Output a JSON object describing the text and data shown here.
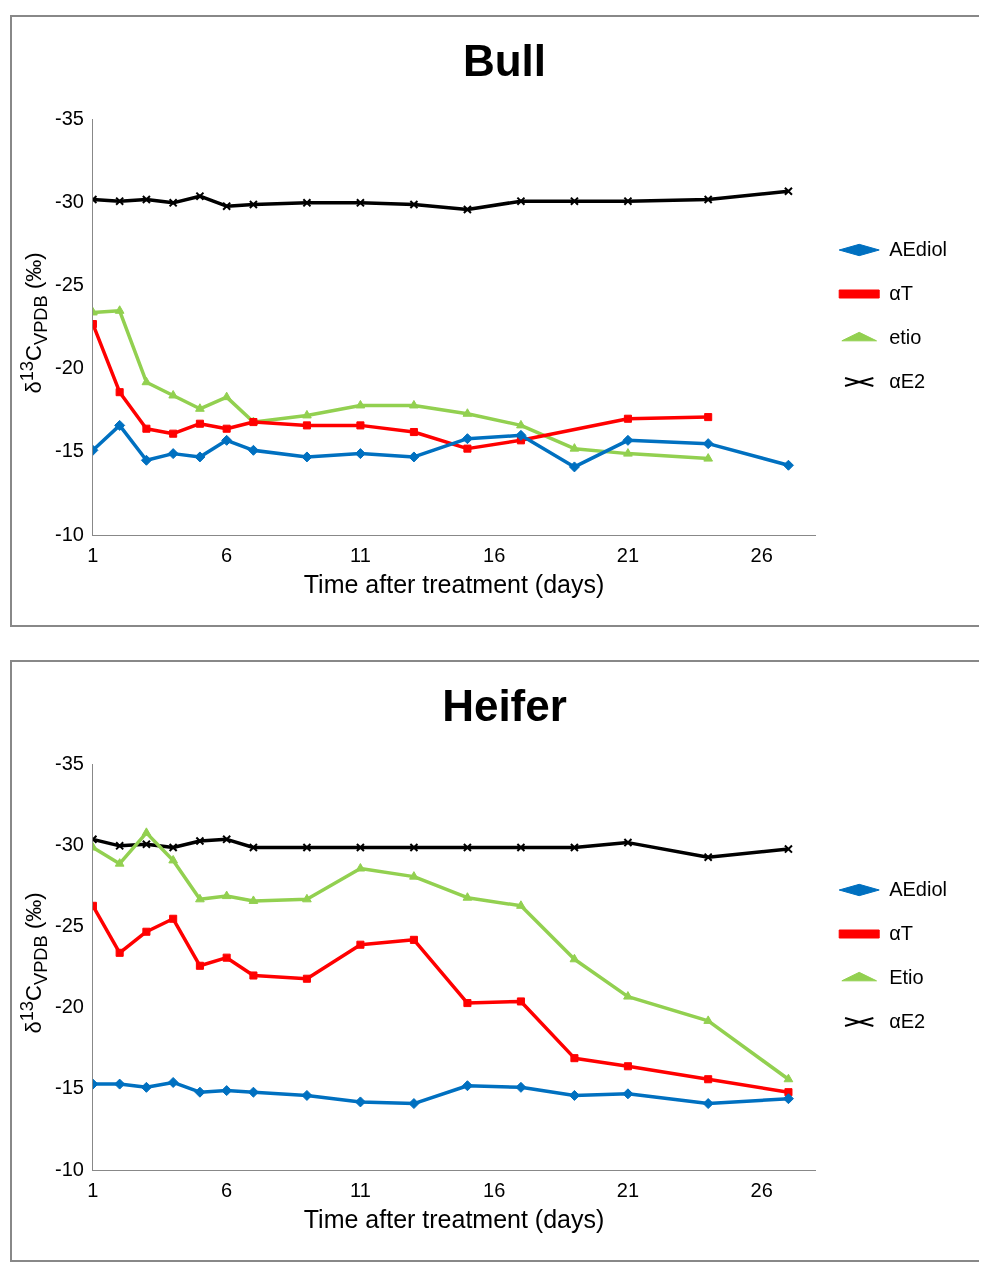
{
  "chart_data": [
    {
      "type": "line",
      "title": "Bull",
      "xlabel": "Time after treatment (days)",
      "ylabel": "δ$^{13}$C$_{VPDB}$ (‰)",
      "xlim": [
        1,
        28
      ],
      "xticks": [
        1,
        6,
        11,
        16,
        21,
        26
      ],
      "ylim": [
        -10,
        -35
      ],
      "yticks": [
        -35,
        -30,
        -25,
        -20,
        -15,
        -10
      ],
      "grid": false,
      "legend": "right",
      "series": [
        {
          "name": "AEdiol",
          "color": "#0070c0",
          "marker": "diamond",
          "x": [
            1,
            2,
            3,
            4,
            5,
            6,
            7,
            9,
            11,
            13,
            15,
            17,
            19,
            21,
            24,
            27
          ],
          "values": [
            -15.1,
            -16.6,
            -14.5,
            -14.9,
            -14.7,
            -15.7,
            -15.1,
            -14.7,
            -14.9,
            -14.7,
            -15.8,
            -16.0,
            -14.1,
            -15.7,
            -15.5,
            -14.2
          ]
        },
        {
          "name": "αT",
          "color": "#ff0000",
          "marker": "square",
          "x": [
            1,
            2,
            3,
            4,
            5,
            6,
            7,
            9,
            11,
            13,
            15,
            17,
            21,
            24
          ],
          "values": [
            -22.7,
            -18.6,
            -16.4,
            -16.1,
            -16.7,
            -16.4,
            -16.8,
            -16.6,
            -16.6,
            -16.2,
            -15.2,
            -15.7,
            -17.0,
            -17.1
          ]
        },
        {
          "name": "etio",
          "color": "#92d050",
          "marker": "triangle",
          "x": [
            1,
            2,
            3,
            4,
            5,
            6,
            7,
            9,
            11,
            13,
            15,
            17,
            19,
            21,
            24
          ],
          "values": [
            -23.4,
            -23.5,
            -19.2,
            -18.4,
            -17.6,
            -18.3,
            -16.8,
            -17.2,
            -17.8,
            -17.8,
            -17.3,
            -16.6,
            -15.2,
            -14.9,
            -14.6
          ]
        },
        {
          "name": "αE2",
          "color": "#000000",
          "marker": "cross",
          "x": [
            1,
            2,
            3,
            4,
            5,
            6,
            7,
            9,
            11,
            13,
            15,
            17,
            19,
            21,
            24,
            27
          ],
          "values": [
            -30.2,
            -30.1,
            -30.2,
            -30.0,
            -30.4,
            -29.8,
            -29.9,
            -30.0,
            -30.0,
            -29.9,
            -29.6,
            -30.1,
            -30.1,
            -30.1,
            -30.2,
            -30.7
          ]
        }
      ]
    },
    {
      "type": "line",
      "title": "Heifer",
      "xlabel": "Time after treatment (days)",
      "ylabel": "δ$^{13}$C$_{VPDB}$ (‰)",
      "xlim": [
        1,
        28
      ],
      "xticks": [
        1,
        6,
        11,
        16,
        21,
        26
      ],
      "ylim": [
        -10,
        -35
      ],
      "yticks": [
        -35,
        -30,
        -25,
        -20,
        -15,
        -10
      ],
      "grid": false,
      "legend": "right",
      "series": [
        {
          "name": "AEdiol",
          "color": "#0070c0",
          "marker": "diamond",
          "x": [
            1,
            2,
            3,
            4,
            5,
            6,
            7,
            9,
            11,
            13,
            15,
            17,
            19,
            21,
            24,
            27
          ],
          "values": [
            -15.3,
            -15.3,
            -15.1,
            -15.4,
            -14.8,
            -14.9,
            -14.8,
            -14.6,
            -14.2,
            -14.1,
            -15.2,
            -15.1,
            -14.6,
            -14.7,
            -14.1,
            -14.4
          ]
        },
        {
          "name": "αT",
          "color": "#ff0000",
          "marker": "square",
          "x": [
            1,
            2,
            3,
            4,
            5,
            6,
            7,
            9,
            11,
            13,
            15,
            17,
            19,
            21,
            24,
            27
          ],
          "values": [
            -26.3,
            -23.4,
            -24.7,
            -25.5,
            -22.6,
            -23.1,
            -22.0,
            -21.8,
            -23.9,
            -24.2,
            -20.3,
            -20.4,
            -16.9,
            -16.4,
            -15.6,
            -14.8
          ]
        },
        {
          "name": "Etio",
          "color": "#92d050",
          "marker": "triangle",
          "x": [
            1,
            2,
            3,
            4,
            5,
            6,
            7,
            9,
            11,
            13,
            15,
            17,
            19,
            21,
            24,
            27
          ],
          "values": [
            -29.9,
            -28.9,
            -30.8,
            -29.1,
            -26.7,
            -26.9,
            -26.6,
            -26.7,
            -28.6,
            -28.1,
            -26.8,
            -26.3,
            -23.0,
            -20.7,
            -19.2,
            -15.6
          ]
        },
        {
          "name": "αE2",
          "color": "#000000",
          "marker": "cross",
          "x": [
            1,
            2,
            3,
            4,
            5,
            6,
            7,
            9,
            11,
            13,
            15,
            17,
            19,
            21,
            24,
            27
          ],
          "values": [
            -30.4,
            -30.0,
            -30.1,
            -29.9,
            -30.3,
            -30.4,
            -29.9,
            -29.9,
            -29.9,
            -29.9,
            -29.9,
            -29.9,
            -29.9,
            -30.2,
            -29.3,
            -29.8
          ]
        }
      ]
    }
  ]
}
